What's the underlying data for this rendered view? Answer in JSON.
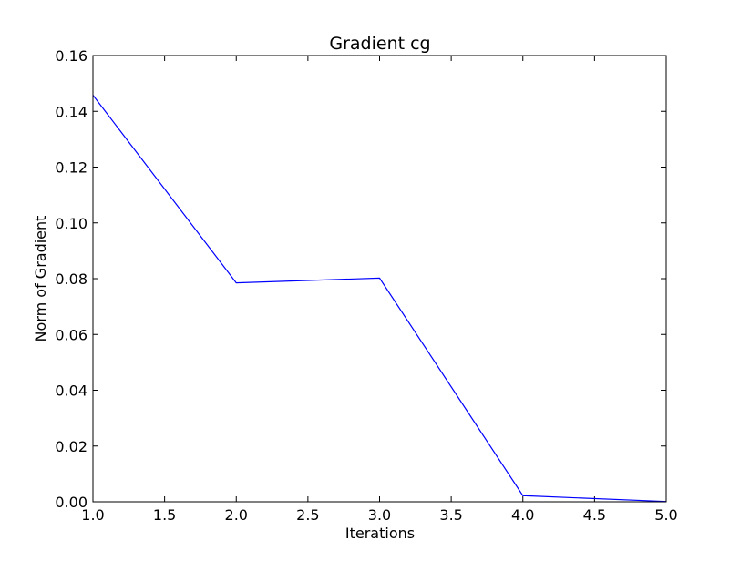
{
  "chart_data": {
    "type": "line",
    "title": "Gradient cg",
    "xlabel": "Iterations",
    "ylabel": "Norm of Gradient",
    "xlim": [
      1.0,
      5.0
    ],
    "ylim": [
      0.0,
      0.16
    ],
    "xticks": [
      "1.0",
      "1.5",
      "2.0",
      "2.5",
      "3.0",
      "3.5",
      "4.0",
      "4.5",
      "5.0"
    ],
    "yticks": [
      "0.00",
      "0.02",
      "0.04",
      "0.06",
      "0.08",
      "0.10",
      "0.12",
      "0.14",
      "0.16"
    ],
    "grid": false,
    "series": [
      {
        "color": "#0000ff",
        "x": [
          1,
          2,
          3,
          4,
          5
        ],
        "y": [
          0.1458,
          0.0785,
          0.0802,
          0.0022,
          0.0001
        ]
      }
    ]
  }
}
